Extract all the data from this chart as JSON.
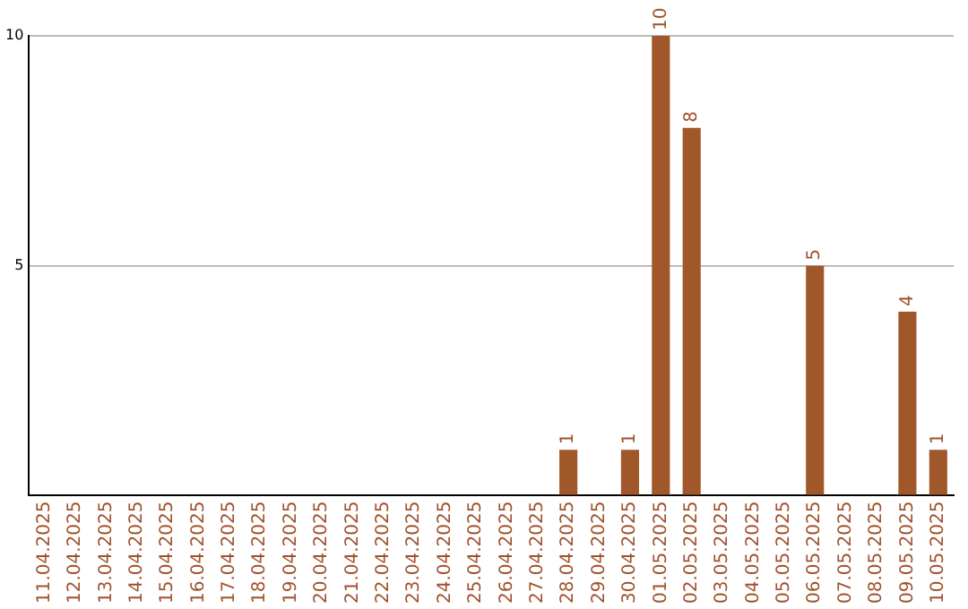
{
  "chart_data": {
    "type": "bar",
    "categories": [
      "11.04.2025",
      "12.04.2025",
      "13.04.2025",
      "14.04.2025",
      "15.04.2025",
      "16.04.2025",
      "17.04.2025",
      "18.04.2025",
      "19.04.2025",
      "20.04.2025",
      "21.04.2025",
      "22.04.2025",
      "23.04.2025",
      "24.04.2025",
      "25.04.2025",
      "26.04.2025",
      "27.04.2025",
      "28.04.2025",
      "29.04.2025",
      "30.04.2025",
      "01.05.2025",
      "02.05.2025",
      "03.05.2025",
      "04.05.2025",
      "05.05.2025",
      "06.05.2025",
      "07.05.2025",
      "08.05.2025",
      "09.05.2025",
      "10.05.2025"
    ],
    "values": [
      0,
      0,
      0,
      0,
      0,
      0,
      0,
      0,
      0,
      0,
      0,
      0,
      0,
      0,
      0,
      0,
      0,
      1,
      0,
      1,
      10,
      8,
      0,
      0,
      0,
      5,
      0,
      0,
      4,
      1
    ],
    "value_labels": [
      null,
      null,
      null,
      null,
      null,
      null,
      null,
      null,
      null,
      null,
      null,
      null,
      null,
      null,
      null,
      null,
      null,
      "1",
      null,
      "1",
      "10",
      "8",
      null,
      null,
      null,
      "5",
      null,
      null,
      "4",
      "1"
    ],
    "color": "#a0582a",
    "ylim": [
      0,
      10
    ],
    "yticks": [
      {
        "value": 0,
        "label": null
      },
      5,
      10
    ],
    "grid": "y"
  }
}
